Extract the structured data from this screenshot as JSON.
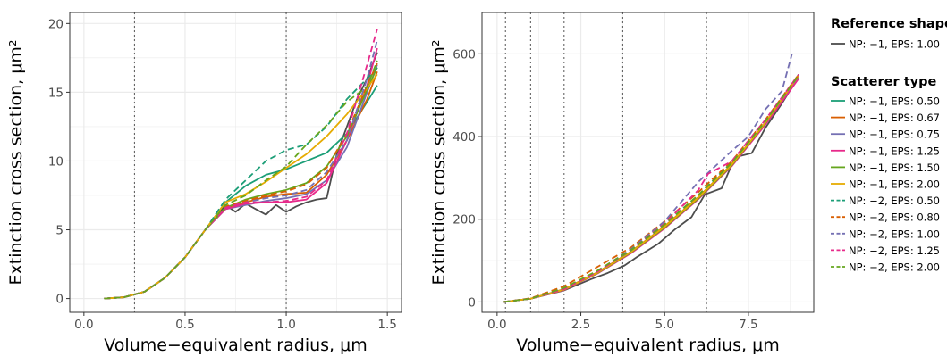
{
  "colors": {
    "reference": "#4d4d4d",
    "s_m1_050": "#1b9e77",
    "s_m1_067": "#d95f02",
    "s_m1_075": "#7570b3",
    "s_m1_125": "#e7298a",
    "s_m1_150": "#66a61e",
    "s_m1_200": "#e6ab02",
    "s_m2_050": "#1b9e77",
    "s_m2_080": "#d95f02",
    "s_m2_100": "#7570b3",
    "s_m2_125": "#e7298a",
    "s_m2_200": "#66a61e",
    "vline": "#555555",
    "grid": "#ebebeb",
    "axis": "#333333"
  },
  "legend": {
    "reference_title": "Reference shape",
    "scatterer_title": "Scatterer type",
    "reference_items": [
      {
        "label": "NP: −1, EPS: 1.00",
        "color_key": "reference",
        "dash": "solid"
      }
    ],
    "scatterer_items": [
      {
        "label": "NP: −1, EPS: 0.50",
        "color_key": "s_m1_050",
        "dash": "solid"
      },
      {
        "label": "NP: −1, EPS: 0.67",
        "color_key": "s_m1_067",
        "dash": "solid"
      },
      {
        "label": "NP: −1, EPS: 0.75",
        "color_key": "s_m1_075",
        "dash": "solid"
      },
      {
        "label": "NP: −1, EPS: 1.25",
        "color_key": "s_m1_125",
        "dash": "solid"
      },
      {
        "label": "NP: −1, EPS: 1.50",
        "color_key": "s_m1_150",
        "dash": "solid"
      },
      {
        "label": "NP: −1, EPS: 2.00",
        "color_key": "s_m1_200",
        "dash": "solid"
      },
      {
        "label": "NP: −2, EPS: 0.50",
        "color_key": "s_m2_050",
        "dash": "dashed"
      },
      {
        "label": "NP: −2, EPS: 0.80",
        "color_key": "s_m2_080",
        "dash": "dashed"
      },
      {
        "label": "NP: −2, EPS: 1.00",
        "color_key": "s_m2_100",
        "dash": "dashed"
      },
      {
        "label": "NP: −2, EPS: 1.25",
        "color_key": "s_m2_125",
        "dash": "dashed"
      },
      {
        "label": "NP: −2, EPS: 2.00",
        "color_key": "s_m2_200",
        "dash": "dashed"
      }
    ]
  },
  "chart_data": [
    {
      "type": "line",
      "xlabel": "Volume−equivalent radius, μm",
      "ylabel": "Extinction cross section, μm²",
      "xlim": [
        -0.07,
        1.57
      ],
      "ylim": [
        -1.0,
        20.8
      ],
      "xticks": [
        0.0,
        0.5,
        1.0,
        1.5
      ],
      "xtick_labels": [
        "0.0",
        "0.5",
        "1.0",
        "1.5"
      ],
      "yticks": [
        0,
        5,
        10,
        15,
        20
      ],
      "ytick_labels": [
        "0",
        "5",
        "10",
        "15",
        "20"
      ],
      "vlines": [
        0.25,
        1.0
      ],
      "grid": true,
      "series": [
        {
          "key": "reference",
          "x": [
            0.1,
            0.2,
            0.3,
            0.4,
            0.5,
            0.6,
            0.7,
            0.75,
            0.8,
            0.85,
            0.9,
            0.95,
            1.0,
            1.05,
            1.1,
            1.15,
            1.2,
            1.25,
            1.3,
            1.35,
            1.4,
            1.45
          ],
          "y": [
            0.0,
            0.1,
            0.5,
            1.5,
            3.0,
            5.0,
            6.8,
            6.3,
            6.9,
            6.5,
            6.1,
            6.8,
            6.3,
            6.7,
            7.0,
            7.2,
            7.3,
            10.5,
            12.5,
            14.5,
            16.0,
            17.9
          ]
        },
        {
          "key": "s_m1_050",
          "x": [
            0.1,
            0.2,
            0.3,
            0.4,
            0.5,
            0.6,
            0.7,
            0.8,
            0.9,
            1.0,
            1.1,
            1.2,
            1.3,
            1.4,
            1.45
          ],
          "y": [
            0.0,
            0.1,
            0.5,
            1.5,
            3.0,
            5.0,
            7.0,
            8.2,
            9.0,
            9.4,
            10.0,
            10.6,
            12.0,
            14.3,
            15.5
          ]
        },
        {
          "key": "s_m1_067",
          "x": [
            0.1,
            0.2,
            0.3,
            0.4,
            0.5,
            0.6,
            0.7,
            0.8,
            0.9,
            1.0,
            1.1,
            1.2,
            1.3,
            1.4,
            1.45
          ],
          "y": [
            0.0,
            0.1,
            0.5,
            1.5,
            3.0,
            5.0,
            6.6,
            7.0,
            7.4,
            7.6,
            7.7,
            9.0,
            11.5,
            14.5,
            16.5
          ]
        },
        {
          "key": "s_m1_075",
          "x": [
            0.1,
            0.2,
            0.3,
            0.4,
            0.5,
            0.6,
            0.7,
            0.8,
            0.9,
            1.0,
            1.1,
            1.2,
            1.3,
            1.4,
            1.45
          ],
          "y": [
            0.0,
            0.1,
            0.5,
            1.5,
            3.0,
            5.0,
            6.5,
            6.8,
            7.1,
            7.3,
            7.6,
            8.6,
            11.0,
            15.0,
            17.0
          ]
        },
        {
          "key": "s_m1_125",
          "x": [
            0.1,
            0.2,
            0.3,
            0.4,
            0.5,
            0.6,
            0.7,
            0.8,
            0.9,
            1.0,
            1.1,
            1.2,
            1.3,
            1.4,
            1.45
          ],
          "y": [
            0.0,
            0.1,
            0.5,
            1.5,
            3.0,
            5.0,
            6.5,
            6.9,
            7.0,
            7.0,
            7.2,
            8.4,
            11.5,
            15.5,
            18.2
          ]
        },
        {
          "key": "s_m1_150",
          "x": [
            0.1,
            0.2,
            0.3,
            0.4,
            0.5,
            0.6,
            0.7,
            0.8,
            0.9,
            1.0,
            1.1,
            1.2,
            1.3,
            1.4,
            1.45
          ],
          "y": [
            0.0,
            0.1,
            0.5,
            1.5,
            3.0,
            5.0,
            6.6,
            7.2,
            7.6,
            7.9,
            8.4,
            9.6,
            11.8,
            15.2,
            16.8
          ]
        },
        {
          "key": "s_m1_200",
          "x": [
            0.1,
            0.2,
            0.3,
            0.4,
            0.5,
            0.6,
            0.7,
            0.8,
            0.9,
            1.0,
            1.1,
            1.2,
            1.3,
            1.4,
            1.45
          ],
          "y": [
            0.0,
            0.1,
            0.5,
            1.5,
            3.0,
            5.0,
            7.0,
            7.6,
            8.5,
            9.5,
            10.5,
            11.8,
            13.4,
            15.3,
            16.3
          ]
        },
        {
          "key": "s_m2_050",
          "x": [
            0.1,
            0.2,
            0.3,
            0.4,
            0.5,
            0.6,
            0.7,
            0.8,
            0.9,
            1.0,
            1.1,
            1.2,
            1.3,
            1.4,
            1.45
          ],
          "y": [
            0.0,
            0.1,
            0.5,
            1.5,
            3.0,
            5.0,
            7.2,
            8.6,
            10.0,
            10.8,
            11.2,
            12.5,
            14.5,
            16.0,
            16.8
          ]
        },
        {
          "key": "s_m2_080",
          "x": [
            0.1,
            0.2,
            0.3,
            0.4,
            0.5,
            0.6,
            0.7,
            0.8,
            0.9,
            1.0,
            1.1,
            1.2,
            1.3,
            1.4,
            1.45
          ],
          "y": [
            0.0,
            0.1,
            0.5,
            1.5,
            3.0,
            5.0,
            6.7,
            7.1,
            7.5,
            7.8,
            8.3,
            9.5,
            12.0,
            15.5,
            17.1
          ]
        },
        {
          "key": "s_m2_100",
          "x": [
            0.1,
            0.2,
            0.3,
            0.4,
            0.5,
            0.6,
            0.7,
            0.8,
            0.9,
            1.0,
            1.1,
            1.2,
            1.3,
            1.4,
            1.45
          ],
          "y": [
            0.0,
            0.1,
            0.5,
            1.5,
            3.0,
            5.0,
            6.6,
            7.0,
            7.3,
            7.5,
            7.9,
            9.2,
            11.5,
            16.0,
            18.8
          ]
        },
        {
          "key": "s_m2_125",
          "x": [
            0.1,
            0.2,
            0.3,
            0.4,
            0.5,
            0.6,
            0.7,
            0.8,
            0.9,
            1.0,
            1.1,
            1.2,
            1.3,
            1.4,
            1.45
          ],
          "y": [
            0.0,
            0.1,
            0.5,
            1.5,
            3.0,
            5.0,
            6.6,
            7.0,
            7.0,
            7.1,
            7.4,
            8.6,
            12.0,
            17.0,
            19.6
          ]
        },
        {
          "key": "s_m2_200",
          "x": [
            0.1,
            0.2,
            0.3,
            0.4,
            0.5,
            0.6,
            0.7,
            0.8,
            0.9,
            1.0,
            1.1,
            1.2,
            1.3,
            1.4,
            1.45
          ],
          "y": [
            0.0,
            0.1,
            0.5,
            1.5,
            3.0,
            5.0,
            6.8,
            7.5,
            8.6,
            9.6,
            11.2,
            12.6,
            14.3,
            15.4,
            17.3
          ]
        }
      ]
    },
    {
      "type": "line",
      "xlabel": "Volume−equivalent radius, μm",
      "ylabel": "Extinction cross section, μm²",
      "xlim": [
        -0.45,
        9.45
      ],
      "ylim": [
        -25,
        700
      ],
      "xticks": [
        0.0,
        2.5,
        5.0,
        7.5
      ],
      "xtick_labels": [
        "0.0",
        "2.5",
        "5.0",
        "7.5"
      ],
      "yticks": [
        0,
        200,
        400,
        600
      ],
      "ytick_labels": [
        "0",
        "200",
        "400",
        "600"
      ],
      "vlines": [
        0.25,
        1.0,
        2.0,
        3.75,
        6.25
      ],
      "grid": true,
      "series": [
        {
          "key": "reference",
          "x": [
            0.2,
            1,
            2,
            2.8,
            3.3,
            3.8,
            4.2,
            4.8,
            5.3,
            5.8,
            6.2,
            6.7,
            7.1,
            7.6,
            8.0,
            8.5,
            9.0
          ],
          "y": [
            0,
            8,
            28,
            55,
            70,
            88,
            110,
            140,
            175,
            205,
            260,
            275,
            350,
            360,
            420,
            480,
            545
          ]
        },
        {
          "key": "s_m1_050",
          "x": [
            0.2,
            1,
            2,
            3,
            4,
            5,
            6,
            7,
            8,
            9
          ],
          "y": [
            0,
            8,
            30,
            70,
            120,
            180,
            250,
            330,
            430,
            545
          ]
        },
        {
          "key": "s_m1_067",
          "x": [
            0.2,
            1,
            2,
            3,
            4,
            5,
            6,
            7,
            8,
            9
          ],
          "y": [
            0,
            8,
            31,
            72,
            122,
            183,
            253,
            333,
            432,
            548
          ]
        },
        {
          "key": "s_m1_075",
          "x": [
            0.2,
            1,
            2,
            3,
            4,
            5,
            6,
            7,
            8,
            9
          ],
          "y": [
            0,
            8,
            30,
            71,
            121,
            181,
            251,
            331,
            430,
            545
          ]
        },
        {
          "key": "s_m1_125",
          "x": [
            0.2,
            1,
            2,
            3,
            4,
            5,
            6,
            7,
            8,
            9
          ],
          "y": [
            0,
            8,
            29,
            69,
            118,
            178,
            248,
            328,
            428,
            540
          ]
        },
        {
          "key": "s_m1_150",
          "x": [
            0.2,
            1,
            2,
            3,
            4,
            5,
            6,
            7,
            8,
            9
          ],
          "y": [
            0,
            8,
            30,
            70,
            120,
            180,
            250,
            330,
            432,
            550
          ]
        },
        {
          "key": "s_m1_200",
          "x": [
            0.2,
            1,
            2,
            3,
            4,
            5,
            6,
            7,
            8,
            9
          ],
          "y": [
            0,
            8,
            30,
            71,
            121,
            182,
            252,
            332,
            433,
            548
          ]
        },
        {
          "key": "s_m2_050",
          "x": [
            0.2,
            1,
            2,
            3,
            4,
            5,
            6,
            7,
            8,
            9
          ],
          "y": [
            0,
            8,
            32,
            74,
            125,
            188,
            258,
            338,
            438,
            550
          ]
        },
        {
          "key": "s_m2_080",
          "x": [
            0.2,
            1,
            2,
            3,
            4,
            5,
            6,
            7,
            8,
            9
          ],
          "y": [
            0,
            9,
            38,
            85,
            132,
            195,
            265,
            340,
            440,
            550
          ]
        },
        {
          "key": "s_m2_100",
          "x": [
            0.2,
            1,
            2,
            3,
            4,
            5,
            6,
            7,
            7.5,
            8,
            8.5,
            8.8
          ],
          "y": [
            0,
            8,
            32,
            75,
            128,
            195,
            290,
            365,
            400,
            465,
            510,
            600
          ]
        },
        {
          "key": "s_m2_125",
          "x": [
            0.2,
            1,
            2,
            3,
            4,
            5,
            6,
            6.3,
            7,
            8,
            9
          ],
          "y": [
            0,
            8,
            31,
            73,
            126,
            190,
            270,
            310,
            340,
            440,
            550
          ]
        },
        {
          "key": "s_m2_200",
          "x": [
            0.2,
            1,
            2,
            3,
            4,
            5,
            6,
            7,
            8,
            9
          ],
          "y": [
            0,
            8,
            34,
            76,
            126,
            188,
            258,
            336,
            436,
            548
          ]
        }
      ]
    }
  ]
}
